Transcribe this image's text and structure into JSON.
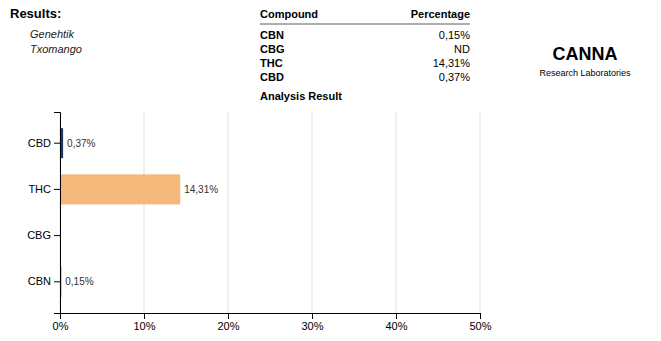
{
  "chart_data": {
    "type": "bar",
    "orientation": "horizontal",
    "title": "Results:",
    "subtitle": [
      "Genehtik",
      "Txomango"
    ],
    "categories": [
      "CBD",
      "THC",
      "CBG",
      "CBN"
    ],
    "values": [
      0.37,
      14.31,
      0,
      0.15
    ],
    "value_labels": [
      "0,37%",
      "14,31%",
      null,
      "0,15%"
    ],
    "colors": [
      "#1a3a6b",
      "#f5b87a",
      "#1a3a6b",
      "#1a3a6b"
    ],
    "xlim": [
      0,
      50
    ],
    "xticks": [
      {
        "value": 0,
        "label": "0%"
      },
      {
        "value": 10,
        "label": "10%"
      },
      {
        "value": 20,
        "label": "20%"
      },
      {
        "value": 30,
        "label": "30%"
      },
      {
        "value": 40,
        "label": "40%"
      },
      {
        "value": 50,
        "label": "50%"
      }
    ],
    "grid": true,
    "data_labels": true,
    "table": {
      "header": [
        "Compound",
        "Percentage"
      ],
      "rows": [
        [
          "CBN",
          "0,15%"
        ],
        [
          "CBG",
          "ND"
        ],
        [
          "THC",
          "14,31%"
        ],
        [
          "CBD",
          "0,37%"
        ]
      ]
    },
    "annotations": [
      "Analysis Result",
      "CANNA",
      "Research Laboratories"
    ]
  }
}
